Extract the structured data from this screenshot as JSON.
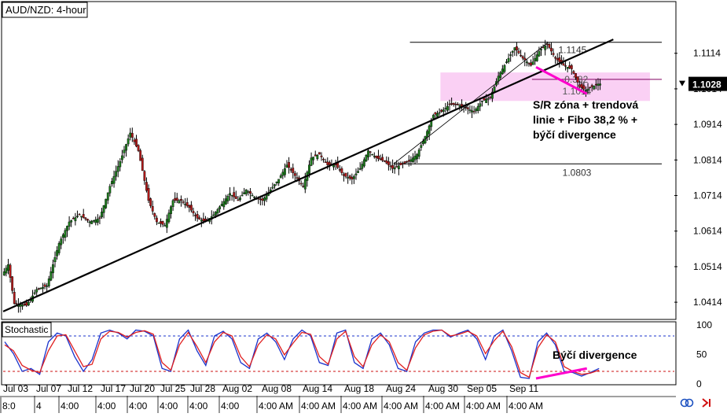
{
  "window": {
    "symbol_title": "AUD/NZD: 4-hour",
    "indicator_title": "Stochastic"
  },
  "colors": {
    "bull": "#1a7a1a",
    "bear": "#b01818",
    "zone": "#f9c8f2",
    "divergence": "#ff00cc",
    "trendline": "#000000",
    "stoch_k": "#1a33cc",
    "stoch_d": "#e02020",
    "level_80": "#1a33cc",
    "level_20": "#cc1010",
    "price_tag": "#000000"
  },
  "chart_data": [
    {
      "type": "candlestick",
      "title": "AUD/NZD: 4-hour",
      "ylim": [
        1.037,
        1.1255
      ],
      "y_ticks": [
        "1.1114",
        "1.1014",
        "1.0914",
        "1.0814",
        "1.0714",
        "1.0614",
        "1.0514",
        "1.0414"
      ],
      "current_price": "1.1028",
      "x_date_labels": [
        "Jul 03",
        "Jul 07",
        "Jul 12",
        "Jul 17",
        "Jul 20",
        "Jul 25",
        "Jul 28",
        "Aug 02",
        "Aug 08",
        "Aug 14",
        "Aug 18",
        "Aug 24",
        "Aug 30",
        "Sep 05",
        "Sep 11"
      ],
      "x_time_labels": [
        "8:0",
        "4",
        "4:00",
        "4:00",
        "4:00",
        "4:00",
        "4:00",
        "4:00",
        "4:00 AM",
        "4:00 AM",
        "4:00 AM",
        "4:00 AM",
        "4:00 AM",
        "4:00 AM",
        "4:00 AM"
      ],
      "levels": [
        {
          "name": "high",
          "value": 1.1145,
          "label": "1.1145"
        },
        {
          "name": "low",
          "value": 1.0803,
          "label": "1.0803"
        },
        {
          "name": "fib-38.2",
          "value": 1.1014,
          "label": "1.1014",
          "ratio_label": "0.382"
        }
      ],
      "sr_zone": [
        1.098,
        1.106
      ],
      "trendline": {
        "from": [
          0,
          1.0388
        ],
        "to": [
          300,
          1.1153
        ]
      },
      "price_divergence": {
        "from": [
          262,
          1.1075
        ],
        "to": [
          287,
          1.1
        ]
      },
      "annotation": [
        "S/R zóna + trendová",
        "linie + Fibo 38,2 % +",
        "býčí divergence"
      ],
      "path_points": [
        [
          0,
          1.049
        ],
        [
          3,
          1.052
        ],
        [
          6,
          1.041
        ],
        [
          12,
          1.0405
        ],
        [
          17,
          1.045
        ],
        [
          22,
          1.046
        ],
        [
          28,
          1.058
        ],
        [
          33,
          1.064
        ],
        [
          38,
          1.066
        ],
        [
          43,
          1.064
        ],
        [
          48,
          1.065
        ],
        [
          53,
          1.074
        ],
        [
          58,
          1.081
        ],
        [
          63,
          1.089
        ],
        [
          67,
          1.084
        ],
        [
          72,
          1.07
        ],
        [
          76,
          1.064
        ],
        [
          80,
          1.063
        ],
        [
          84,
          1.07
        ],
        [
          88,
          1.07
        ],
        [
          92,
          1.068
        ],
        [
          96,
          1.065
        ],
        [
          100,
          1.064
        ],
        [
          104,
          1.066
        ],
        [
          108,
          1.069
        ],
        [
          112,
          1.072
        ],
        [
          116,
          1.07
        ],
        [
          120,
          1.073
        ],
        [
          124,
          1.071
        ],
        [
          128,
          1.07
        ],
        [
          132,
          1.073
        ],
        [
          136,
          1.076
        ],
        [
          140,
          1.08
        ],
        [
          144,
          1.077
        ],
        [
          148,
          1.074
        ],
        [
          152,
          1.082
        ],
        [
          156,
          1.083
        ],
        [
          160,
          1.08
        ],
        [
          164,
          1.08
        ],
        [
          168,
          1.077
        ],
        [
          172,
          1.076
        ],
        [
          176,
          1.079
        ],
        [
          180,
          1.084
        ],
        [
          184,
          1.082
        ],
        [
          188,
          1.081
        ],
        [
          192,
          1.079
        ],
        [
          196,
          1.08
        ],
        [
          200,
          1.081
        ],
        [
          204,
          1.083
        ],
        [
          208,
          1.088
        ],
        [
          212,
          1.094
        ],
        [
          216,
          1.095
        ],
        [
          220,
          1.097
        ],
        [
          224,
          1.097
        ],
        [
          228,
          1.096
        ],
        [
          232,
          1.095
        ],
        [
          236,
          1.098
        ],
        [
          240,
          1.099
        ],
        [
          244,
          1.105
        ],
        [
          248,
          1.109
        ],
        [
          252,
          1.113
        ],
        [
          256,
          1.11
        ],
        [
          260,
          1.108
        ],
        [
          264,
          1.112
        ],
        [
          268,
          1.114
        ],
        [
          272,
          1.11
        ],
        [
          276,
          1.108
        ],
        [
          280,
          1.107
        ],
        [
          284,
          1.102
        ],
        [
          287,
          1.101
        ],
        [
          290,
          1.102
        ],
        [
          293,
          1.1028
        ]
      ]
    },
    {
      "type": "line",
      "title": "Stochastic",
      "ylim": [
        0,
        100
      ],
      "y_ticks": [
        "100",
        "50",
        "0"
      ],
      "levels": [
        80,
        20
      ],
      "series": [
        {
          "key": "k",
          "values": [
            70,
            50,
            20,
            25,
            15,
            70,
            85,
            80,
            45,
            20,
            40,
            85,
            90,
            85,
            75,
            90,
            88,
            80,
            25,
            20,
            75,
            90,
            55,
            30,
            80,
            88,
            75,
            35,
            25,
            75,
            85,
            70,
            40,
            75,
            90,
            80,
            35,
            30,
            85,
            90,
            35,
            25,
            75,
            85,
            65,
            25,
            20,
            70,
            85,
            90,
            90,
            78,
            85,
            90,
            75,
            40,
            80,
            90,
            55,
            10,
            8,
            70,
            85,
            65,
            20,
            18,
            12,
            18,
            25
          ]
        },
        {
          "key": "d",
          "values": [
            65,
            55,
            30,
            22,
            18,
            55,
            80,
            82,
            55,
            28,
            32,
            75,
            88,
            86,
            78,
            86,
            89,
            83,
            35,
            22,
            65,
            86,
            62,
            35,
            70,
            86,
            80,
            45,
            28,
            65,
            82,
            75,
            48,
            68,
            86,
            83,
            45,
            32,
            75,
            88,
            45,
            28,
            65,
            82,
            70,
            35,
            22,
            60,
            82,
            88,
            90,
            80,
            83,
            88,
            80,
            50,
            72,
            88,
            62,
            18,
            10,
            60,
            82,
            70,
            28,
            20,
            15,
            17,
            22
          ]
        }
      ],
      "divergence": {
        "from": [
          262,
          8
        ],
        "to": [
          287,
          25
        ]
      },
      "annotation": "Býčí divergence"
    }
  ]
}
